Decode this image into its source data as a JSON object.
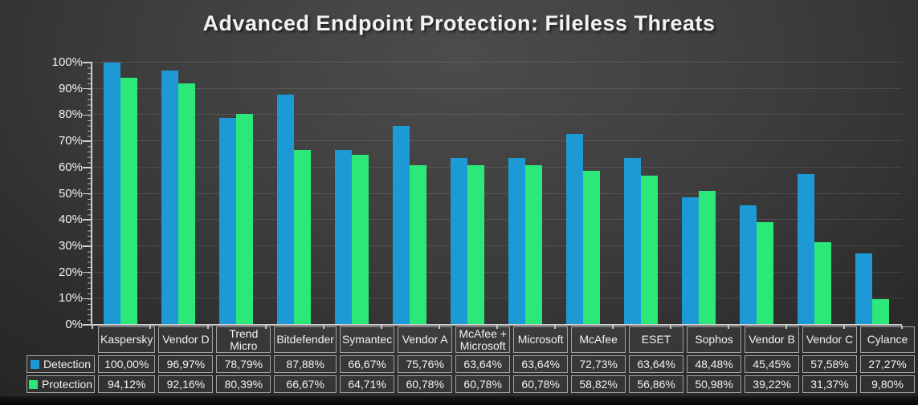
{
  "title": "Advanced Endpoint Protection: Fileless Threats",
  "colors": {
    "detection_blue": "#1D9AD6",
    "protection_green": "#2BE878",
    "axis": "#cfcfcf",
    "table_border": "#a3a3a3",
    "text": "#f2f2f2"
  },
  "chart_data": {
    "type": "bar",
    "title": "Advanced Endpoint Protection: Fileless Threats",
    "xlabel": "",
    "ylabel": "",
    "ylim": [
      0,
      100
    ],
    "grid": true,
    "yticks": [
      "0%",
      "10%",
      "20%",
      "30%",
      "40%",
      "50%",
      "60%",
      "70%",
      "80%",
      "90%",
      "100%"
    ],
    "legend_position": "table-left",
    "categories": [
      "Kaspersky",
      "Vendor D",
      "Trend Micro",
      "Bitdefender",
      "Symantec",
      "Vendor A",
      "McAfee + Microsoft",
      "Microsoft",
      "McAfee",
      "ESET",
      "Sophos",
      "Vendor B",
      "Vendor C",
      "Cylance"
    ],
    "series": [
      {
        "name": "Detection",
        "color": "#1D9AD6",
        "values": [
          100.0,
          96.97,
          78.79,
          87.88,
          66.67,
          75.76,
          63.64,
          63.64,
          72.73,
          63.64,
          48.48,
          45.45,
          57.58,
          27.27
        ],
        "display": [
          "100,00%",
          "96,97%",
          "78,79%",
          "87,88%",
          "66,67%",
          "75,76%",
          "63,64%",
          "63,64%",
          "72,73%",
          "63,64%",
          "48,48%",
          "45,45%",
          "57,58%",
          "27,27%"
        ]
      },
      {
        "name": "Protection",
        "color": "#2BE878",
        "values": [
          94.12,
          92.16,
          80.39,
          66.67,
          64.71,
          60.78,
          60.78,
          60.78,
          58.82,
          56.86,
          50.98,
          39.22,
          31.37,
          9.8
        ],
        "display": [
          "94,12%",
          "92,16%",
          "80,39%",
          "66,67%",
          "64,71%",
          "60,78%",
          "60,78%",
          "60,78%",
          "58,82%",
          "56,86%",
          "50,98%",
          "39,22%",
          "31,37%",
          "9,80%"
        ]
      }
    ]
  }
}
